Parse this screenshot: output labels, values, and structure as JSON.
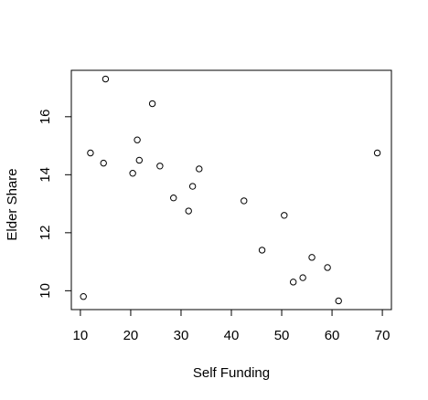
{
  "chart_data": {
    "type": "scatter",
    "title": "",
    "xlabel": "Self Funding",
    "ylabel": "Elder Share",
    "xlim": [
      8.2,
      71.8
    ],
    "ylim": [
      9.35,
      17.6
    ],
    "x_ticks": [
      10,
      20,
      30,
      40,
      50,
      60,
      70
    ],
    "y_ticks": [
      10,
      12,
      14,
      16
    ],
    "grid": false,
    "marker": "open-circle",
    "colors": {
      "points": "#000000",
      "frame": "#000000",
      "background": "#ffffff"
    },
    "points": [
      {
        "x": 10.6,
        "y": 9.8
      },
      {
        "x": 12.0,
        "y": 14.75
      },
      {
        "x": 14.6,
        "y": 14.4
      },
      {
        "x": 15.0,
        "y": 17.3
      },
      {
        "x": 20.4,
        "y": 14.05
      },
      {
        "x": 21.3,
        "y": 15.2
      },
      {
        "x": 21.7,
        "y": 14.5
      },
      {
        "x": 24.3,
        "y": 16.45
      },
      {
        "x": 25.8,
        "y": 14.3
      },
      {
        "x": 28.5,
        "y": 13.2
      },
      {
        "x": 31.5,
        "y": 12.75
      },
      {
        "x": 32.3,
        "y": 13.6
      },
      {
        "x": 33.6,
        "y": 14.2
      },
      {
        "x": 42.5,
        "y": 13.1
      },
      {
        "x": 46.1,
        "y": 11.4
      },
      {
        "x": 50.5,
        "y": 12.6
      },
      {
        "x": 52.3,
        "y": 10.3
      },
      {
        "x": 54.2,
        "y": 10.45
      },
      {
        "x": 56.0,
        "y": 11.15
      },
      {
        "x": 59.1,
        "y": 10.8
      },
      {
        "x": 61.3,
        "y": 9.65
      },
      {
        "x": 69.0,
        "y": 14.75
      }
    ]
  }
}
